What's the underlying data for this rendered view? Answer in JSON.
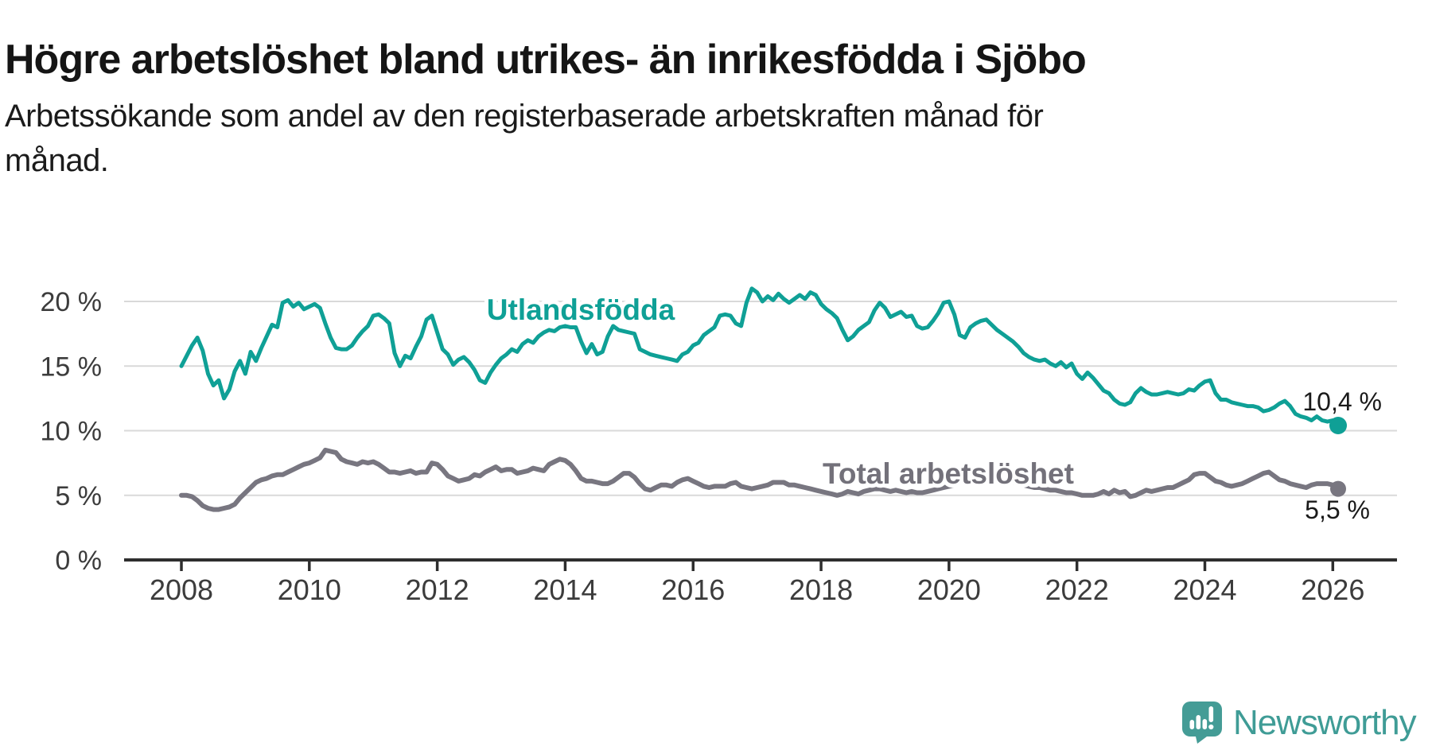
{
  "header": {
    "title": "Högre arbetslöshet bland utrikes- än inrikesfödda i Sjöbo",
    "subtitle_lines": [
      "Arbetssökande som andel av den registerbaserade arbetskraften månad för",
      "månad."
    ]
  },
  "colors": {
    "series_foreign_born": "#0fa096",
    "series_total": "#787680",
    "series_total_label": "#73717a",
    "grid": "#d9d9d9",
    "axis": "#2e2e2e",
    "tick_text": "#3c3c3c",
    "value_label_text": "#1a1a1a",
    "logo": "#449c96"
  },
  "chart_data": {
    "type": "line",
    "title": "",
    "xlabel": "",
    "ylabel": "",
    "grid": true,
    "legend_position": "inline-labels",
    "x_start_year": 2008,
    "x_start_month": 1,
    "months": 218,
    "x_ticks": [
      {
        "year": 2008,
        "label": "2008"
      },
      {
        "year": 2010,
        "label": "2010"
      },
      {
        "year": 2012,
        "label": "2012"
      },
      {
        "year": 2014,
        "label": "2014"
      },
      {
        "year": 2016,
        "label": "2016"
      },
      {
        "year": 2018,
        "label": "2018"
      },
      {
        "year": 2020,
        "label": "2020"
      },
      {
        "year": 2022,
        "label": "2022"
      },
      {
        "year": 2024,
        "label": "2024"
      },
      {
        "year": 2026,
        "label": "2026"
      }
    ],
    "y_ticks": [
      {
        "value": 0,
        "label": "0 %"
      },
      {
        "value": 5,
        "label": "5 %"
      },
      {
        "value": 10,
        "label": "10 %"
      },
      {
        "value": 15,
        "label": "15 %"
      },
      {
        "value": 20,
        "label": "20 %"
      }
    ],
    "ylim": [
      0,
      21.5
    ],
    "series": [
      {
        "name": "Utlandsfödda",
        "color": "#0fa096",
        "end_label": "10,4 %",
        "end_value": 10.4,
        "values": [
          15.0,
          15.8,
          16.6,
          17.2,
          16.2,
          14.4,
          13.5,
          13.9,
          12.5,
          13.2,
          14.6,
          15.4,
          14.4,
          16.1,
          15.4,
          16.4,
          17.3,
          18.2,
          18.0,
          19.9,
          20.1,
          19.6,
          19.9,
          19.4,
          19.6,
          19.8,
          19.5,
          18.3,
          17.2,
          16.4,
          16.3,
          16.3,
          16.6,
          17.2,
          17.7,
          18.1,
          18.9,
          19.0,
          18.7,
          18.3,
          16.0,
          15.0,
          15.8,
          15.6,
          16.5,
          17.3,
          18.6,
          18.9,
          17.6,
          16.3,
          15.9,
          15.1,
          15.5,
          15.7,
          15.3,
          14.7,
          13.9,
          13.7,
          14.5,
          15.1,
          15.6,
          15.9,
          16.3,
          16.1,
          16.7,
          17.0,
          16.8,
          17.3,
          17.6,
          17.8,
          17.7,
          18.0,
          18.1,
          18.0,
          18.0,
          16.9,
          16.0,
          16.7,
          15.9,
          16.1,
          17.3,
          18.1,
          17.8,
          17.7,
          17.6,
          17.5,
          16.3,
          16.1,
          15.9,
          15.8,
          15.7,
          15.6,
          15.5,
          15.4,
          15.9,
          16.1,
          16.6,
          16.8,
          17.4,
          17.7,
          18.0,
          18.9,
          19.0,
          18.9,
          18.3,
          18.1,
          19.9,
          21.0,
          20.7,
          20.0,
          20.4,
          20.1,
          20.6,
          20.2,
          19.9,
          20.2,
          20.5,
          20.2,
          20.7,
          20.5,
          19.8,
          19.4,
          19.1,
          18.7,
          17.8,
          17.0,
          17.3,
          17.8,
          18.1,
          18.4,
          19.3,
          19.9,
          19.5,
          18.8,
          19.0,
          19.2,
          18.8,
          18.9,
          18.1,
          17.9,
          18.0,
          18.5,
          19.1,
          19.9,
          20.0,
          19.0,
          17.4,
          17.2,
          18.0,
          18.3,
          18.5,
          18.6,
          18.2,
          17.8,
          17.5,
          17.2,
          16.9,
          16.5,
          16.0,
          15.7,
          15.5,
          15.4,
          15.5,
          15.2,
          15.0,
          15.3,
          14.9,
          15.2,
          14.4,
          14.0,
          14.5,
          14.1,
          13.6,
          13.1,
          12.9,
          12.4,
          12.1,
          12.0,
          12.2,
          12.9,
          13.3,
          13.0,
          12.8,
          12.8,
          12.9,
          13.0,
          12.9,
          12.8,
          12.9,
          13.2,
          13.1,
          13.5,
          13.8,
          13.9,
          12.9,
          12.4,
          12.4,
          12.2,
          12.1,
          12.0,
          11.9,
          11.9,
          11.8,
          11.5,
          11.6,
          11.8,
          12.1,
          12.3,
          11.9,
          11.3,
          11.1,
          11.0,
          10.8,
          11.1,
          10.8,
          10.7,
          10.8,
          10.4
        ]
      },
      {
        "name": "Total arbetslöshet",
        "color": "#787680",
        "end_label": "5,5 %",
        "end_value": 5.5,
        "values": [
          5.0,
          5.0,
          4.9,
          4.6,
          4.2,
          4.0,
          3.9,
          3.9,
          4.0,
          4.1,
          4.3,
          4.8,
          5.2,
          5.6,
          6.0,
          6.2,
          6.3,
          6.5,
          6.6,
          6.6,
          6.8,
          7.0,
          7.2,
          7.4,
          7.5,
          7.7,
          7.9,
          8.5,
          8.4,
          8.3,
          7.8,
          7.6,
          7.5,
          7.4,
          7.6,
          7.5,
          7.6,
          7.4,
          7.1,
          6.8,
          6.8,
          6.7,
          6.8,
          6.9,
          6.7,
          6.8,
          6.8,
          7.5,
          7.4,
          7.0,
          6.5,
          6.3,
          6.1,
          6.2,
          6.3,
          6.6,
          6.5,
          6.8,
          7.0,
          7.2,
          6.9,
          7.0,
          7.0,
          6.7,
          6.8,
          6.9,
          7.1,
          7.0,
          6.9,
          7.4,
          7.6,
          7.8,
          7.7,
          7.4,
          6.9,
          6.3,
          6.1,
          6.1,
          6.0,
          5.9,
          5.9,
          6.1,
          6.4,
          6.7,
          6.7,
          6.4,
          5.9,
          5.5,
          5.4,
          5.6,
          5.8,
          5.8,
          5.7,
          6.0,
          6.2,
          6.3,
          6.1,
          5.9,
          5.7,
          5.6,
          5.7,
          5.7,
          5.7,
          5.9,
          6.0,
          5.7,
          5.6,
          5.5,
          5.6,
          5.7,
          5.8,
          6.0,
          6.0,
          6.0,
          5.8,
          5.8,
          5.7,
          5.6,
          5.5,
          5.4,
          5.3,
          5.2,
          5.1,
          5.0,
          5.1,
          5.3,
          5.2,
          5.1,
          5.3,
          5.4,
          5.5,
          5.5,
          5.4,
          5.3,
          5.4,
          5.3,
          5.2,
          5.3,
          5.2,
          5.2,
          5.3,
          5.4,
          5.5,
          5.6,
          5.7,
          5.8,
          6.0,
          6.3,
          6.5,
          6.6,
          6.6,
          6.5,
          6.4,
          6.3,
          6.2,
          6.1,
          6.0,
          5.9,
          5.8,
          5.7,
          5.6,
          5.6,
          5.5,
          5.4,
          5.4,
          5.3,
          5.2,
          5.2,
          5.1,
          5.0,
          5.0,
          5.0,
          5.1,
          5.3,
          5.1,
          5.4,
          5.2,
          5.3,
          4.9,
          5.0,
          5.2,
          5.4,
          5.3,
          5.4,
          5.5,
          5.6,
          5.6,
          5.8,
          6.0,
          6.2,
          6.6,
          6.7,
          6.7,
          6.4,
          6.1,
          6.0,
          5.8,
          5.7,
          5.8,
          5.9,
          6.1,
          6.3,
          6.5,
          6.7,
          6.8,
          6.5,
          6.2,
          6.1,
          5.9,
          5.8,
          5.7,
          5.6,
          5.8,
          5.9,
          5.9,
          5.9,
          5.8,
          5.5
        ]
      }
    ]
  },
  "footer": {
    "brand": "Newsworthy"
  }
}
